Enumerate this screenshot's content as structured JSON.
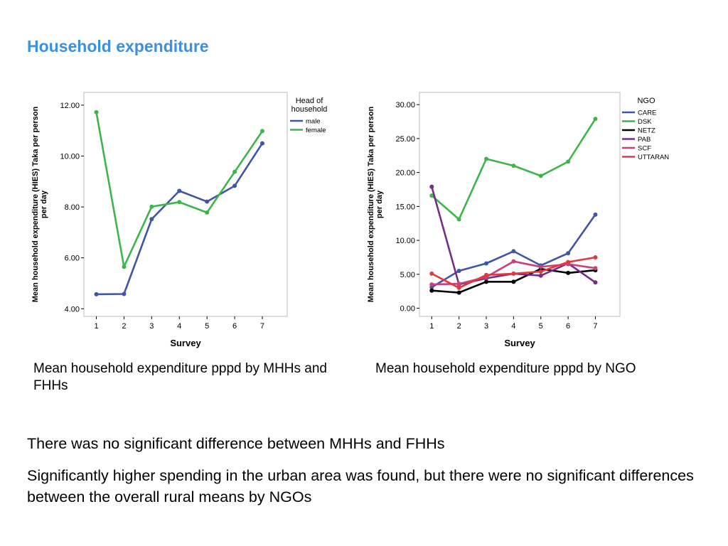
{
  "title": "Household expenditure",
  "chart_data": [
    {
      "type": "line",
      "x": [
        1,
        2,
        3,
        4,
        5,
        6,
        7
      ],
      "xticks": [
        "1",
        "2",
        "3",
        "4",
        "5",
        "6",
        "7"
      ],
      "xlabel": "Survey",
      "ylabel_lines": [
        "Mean household expenditure (HIES) Taka per person",
        "per day"
      ],
      "ylim": [
        3.7,
        12.5
      ],
      "yticks": [
        "4.00",
        "6.00",
        "8.00",
        "10.00",
        "12.00"
      ],
      "ytick_values": [
        4,
        6,
        8,
        10,
        12
      ],
      "legend_title_lines": [
        "Head of",
        "household"
      ],
      "legend_placement": "right",
      "series": [
        {
          "name": "male",
          "color": "#3f55a5",
          "values": [
            4.57,
            4.58,
            7.52,
            8.63,
            8.21,
            8.83,
            10.5
          ]
        },
        {
          "name": "female",
          "color": "#3db649",
          "values": [
            11.72,
            5.65,
            8.01,
            8.19,
            7.78,
            9.38,
            10.98
          ]
        }
      ]
    },
    {
      "type": "line",
      "x": [
        1,
        2,
        3,
        4,
        5,
        6,
        7
      ],
      "xticks": [
        "1",
        "2",
        "3",
        "4",
        "5",
        "6",
        "7"
      ],
      "xlabel": "Survey",
      "ylabel_lines": [
        "Mean household expenditure (HIES) Taka per person",
        "per day"
      ],
      "ylim": [
        -1.2,
        31.8
      ],
      "yticks": [
        "0.00",
        "5.00",
        "10.00",
        "15.00",
        "20.00",
        "25.00",
        "30.00"
      ],
      "ytick_values": [
        0,
        5,
        10,
        15,
        20,
        25,
        30
      ],
      "legend_title_lines": [
        "NGO"
      ],
      "legend_placement": "right",
      "series": [
        {
          "name": "CARE",
          "color": "#3f55a5",
          "values": [
            3.1,
            5.5,
            6.6,
            8.4,
            6.3,
            8.1,
            13.8
          ]
        },
        {
          "name": "DSK",
          "color": "#3db649",
          "values": [
            16.6,
            13.1,
            22.0,
            21.0,
            19.5,
            21.6,
            27.9
          ]
        },
        {
          "name": "NETZ",
          "color": "#000000",
          "values": [
            2.6,
            2.3,
            3.9,
            3.9,
            5.8,
            5.2,
            5.6
          ]
        },
        {
          "name": "PAB",
          "color": "#7a2a8a",
          "values": [
            17.9,
            3.5,
            4.4,
            5.1,
            4.8,
            6.6,
            3.8
          ]
        },
        {
          "name": "SCF",
          "color": "#c8417f",
          "values": [
            3.5,
            3.6,
            4.6,
            6.9,
            6.1,
            6.5,
            5.9
          ]
        },
        {
          "name": "UTTARAN",
          "color": "#e0383e",
          "values": [
            5.1,
            3.0,
            4.9,
            5.1,
            5.4,
            6.8,
            7.5
          ]
        }
      ]
    }
  ],
  "captions": {
    "left": "Mean household expenditure pppd by MHHs and FHHs",
    "right": "Mean household expenditure pppd by NGO"
  },
  "bullets": [
    "There was no significant difference between MHHs and FHHs",
    "Significantly higher spending in the urban area was found, but there were no significant differences between the overall rural means by NGOs"
  ]
}
